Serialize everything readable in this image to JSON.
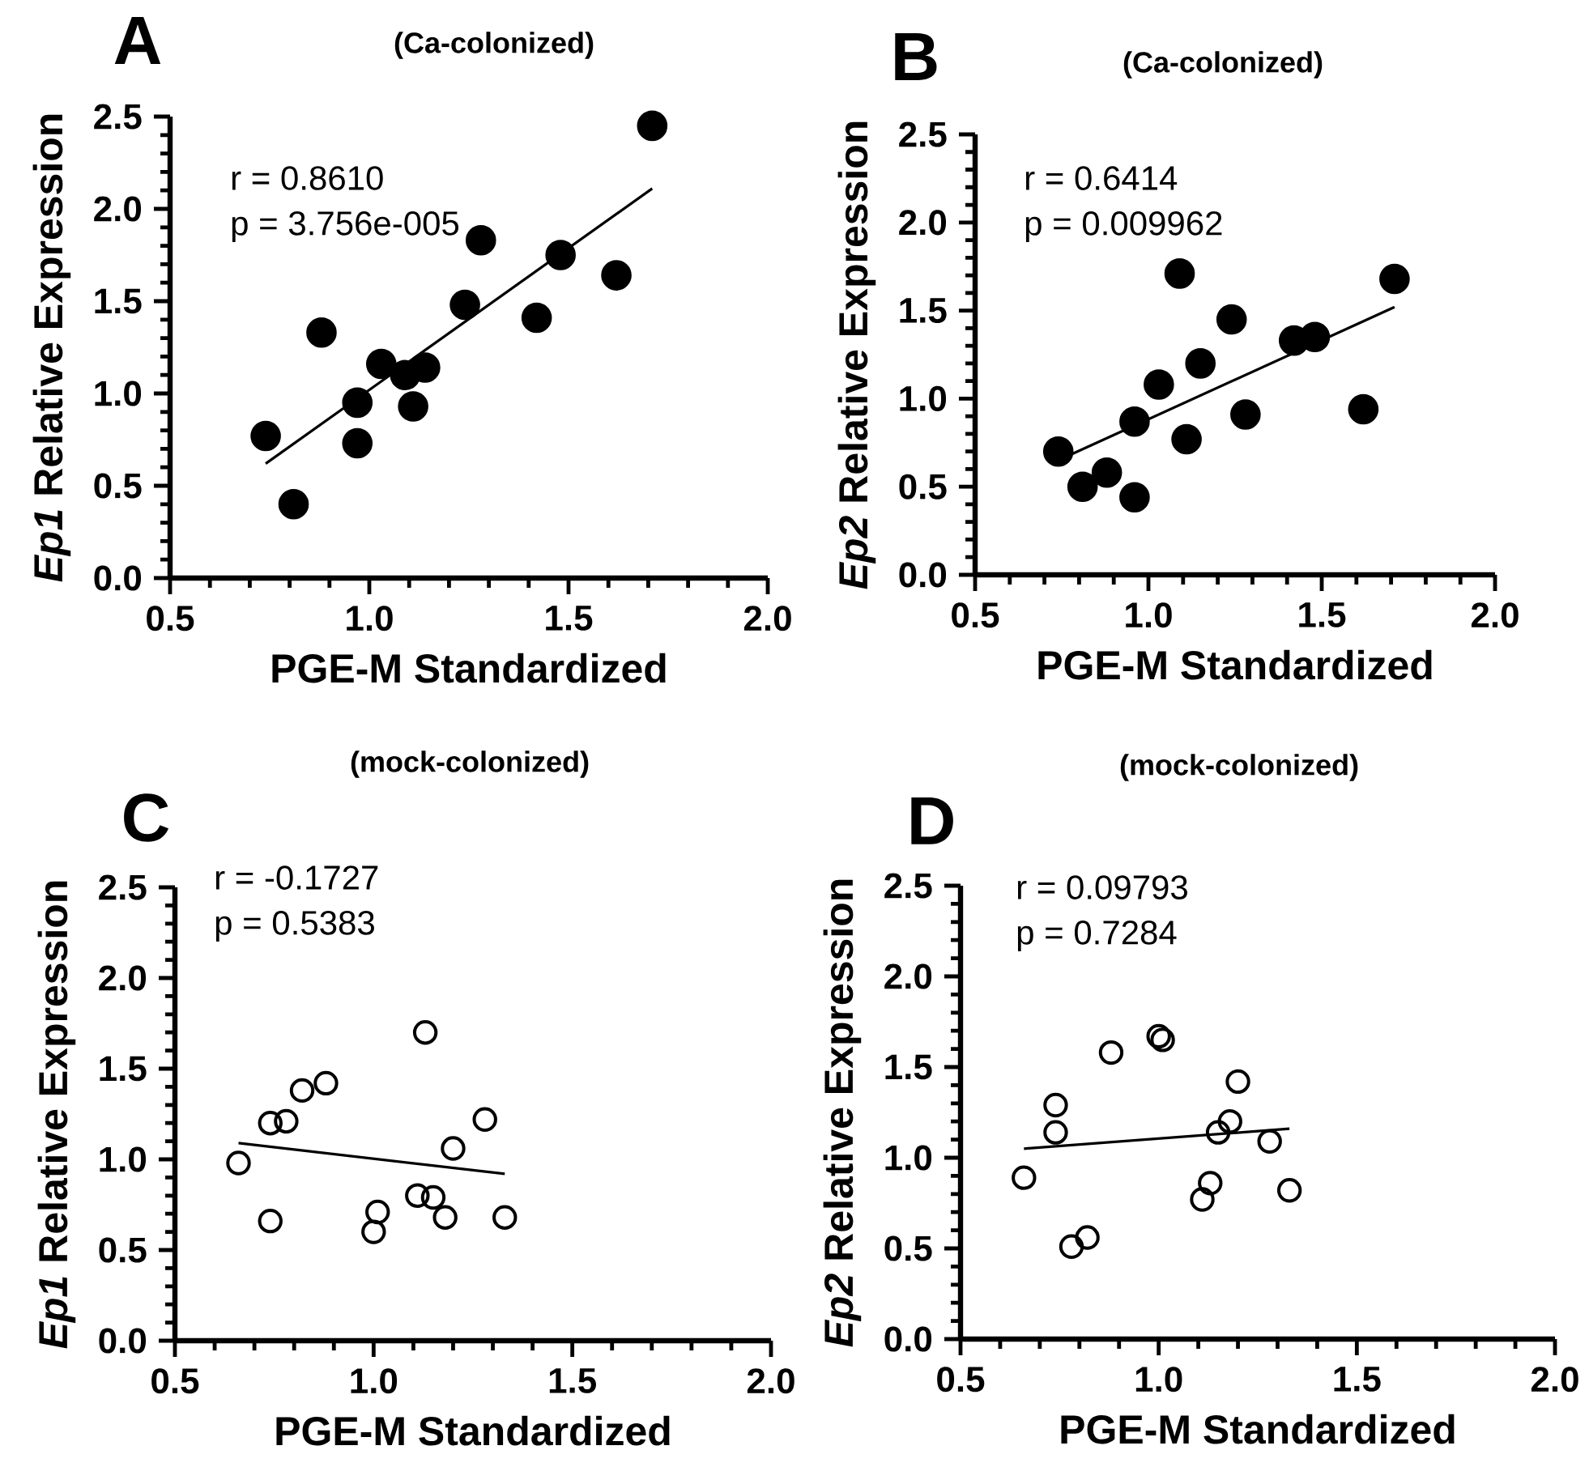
{
  "chart_data": [
    {
      "type": "scatter",
      "title": "(Ca-colonized)",
      "xlabel": "PGE-M Standardized",
      "ylabel": "*Ep1* Relative Expression",
      "annotations": [
        "A",
        "r = 0.8610",
        "p = 3.756e-005"
      ],
      "marker": "circle",
      "grid": false,
      "xlim": [
        0.5,
        2.0
      ],
      "ylim": [
        0,
        2.5
      ],
      "xticks": [
        {
          "value": 0.5,
          "label": "0.5"
        },
        {
          "value": 1,
          "label": "1.0"
        },
        {
          "value": 1.5,
          "label": "1.5"
        },
        {
          "value": 2,
          "label": "2.0"
        }
      ],
      "yticks": [
        {
          "value": 0,
          "label": "0.0"
        },
        {
          "value": 0.5,
          "label": "0.5"
        },
        {
          "value": 1,
          "label": "1.0"
        },
        {
          "value": 1.5,
          "label": "1.5"
        },
        {
          "value": 2,
          "label": "2.0"
        },
        {
          "value": 2.5,
          "label": "2.5"
        }
      ],
      "series": [
        {
          "color": "#000000",
          "x": [
            0.74,
            0.81,
            0.88,
            0.97,
            0.97,
            1.03,
            1.09,
            1.11,
            1.14,
            1.24,
            1.28,
            1.42,
            1.48,
            1.62,
            1.71
          ],
          "values": [
            0.77,
            0.4,
            1.33,
            0.95,
            0.73,
            1.16,
            1.1,
            0.93,
            1.14,
            1.48,
            1.83,
            1.41,
            1.75,
            1.64,
            2.45
          ]
        },
        {
          "type": "line",
          "marker": "none",
          "color": "#000000",
          "x": [
            0.74,
            1.71
          ],
          "values": [
            0.62,
            2.11
          ]
        }
      ]
    },
    {
      "type": "scatter",
      "title": "(Ca-colonized)",
      "xlabel": "PGE-M Standardized",
      "ylabel": "*Ep2* Relative Expression",
      "annotations": [
        "B",
        "r = 0.6414",
        "p = 0.009962"
      ],
      "marker": "circle",
      "grid": false,
      "xlim": [
        0.5,
        2.0
      ],
      "ylim": [
        0,
        2.5
      ],
      "xticks": [
        {
          "value": 0.5,
          "label": "0.5"
        },
        {
          "value": 1,
          "label": "1.0"
        },
        {
          "value": 1.5,
          "label": "1.5"
        },
        {
          "value": 2,
          "label": "2.0"
        }
      ],
      "yticks": [
        {
          "value": 0,
          "label": "0.0"
        },
        {
          "value": 0.5,
          "label": "0.5"
        },
        {
          "value": 1,
          "label": "1.0"
        },
        {
          "value": 1.5,
          "label": "1.5"
        },
        {
          "value": 2,
          "label": "2.0"
        },
        {
          "value": 2.5,
          "label": "2.5"
        }
      ],
      "series": [
        {
          "color": "#000000",
          "x": [
            0.74,
            0.81,
            0.88,
            0.96,
            0.96,
            1.03,
            1.09,
            1.11,
            1.15,
            1.24,
            1.28,
            1.42,
            1.48,
            1.62,
            1.71
          ],
          "values": [
            0.7,
            0.5,
            0.58,
            0.44,
            0.87,
            1.08,
            1.71,
            0.77,
            1.2,
            1.45,
            0.91,
            1.33,
            1.35,
            0.94,
            1.68
          ]
        },
        {
          "type": "line",
          "marker": "none",
          "color": "#000000",
          "x": [
            0.74,
            1.71
          ],
          "values": [
            0.65,
            1.52
          ]
        }
      ]
    },
    {
      "type": "scatter",
      "title": "(mock-colonized)",
      "xlabel": "PGE-M Standardized",
      "ylabel": "*Ep1* Relative Expression",
      "annotations": [
        "C",
        "r = -0.1727",
        "p = 0.5383"
      ],
      "marker": "circle",
      "grid": false,
      "xlim": [
        0.5,
        2.0
      ],
      "ylim": [
        0,
        2.5
      ],
      "xticks": [
        {
          "value": 0.5,
          "label": "0.5"
        },
        {
          "value": 1,
          "label": "1.0"
        },
        {
          "value": 1.5,
          "label": "1.5"
        },
        {
          "value": 2,
          "label": "2.0"
        }
      ],
      "yticks": [
        {
          "value": 0,
          "label": "0.0"
        },
        {
          "value": 0.5,
          "label": "0.5"
        },
        {
          "value": 1,
          "label": "1.0"
        },
        {
          "value": 1.5,
          "label": "1.5"
        },
        {
          "value": 2,
          "label": "2.0"
        },
        {
          "value": 2.5,
          "label": "2.5"
        }
      ],
      "series": [
        {
          "color": "#000000",
          "x": [
            0.66,
            0.74,
            0.74,
            0.78,
            0.82,
            0.88,
            1.0,
            1.01,
            1.11,
            1.13,
            1.15,
            1.18,
            1.2,
            1.28,
            1.33
          ],
          "values": [
            0.98,
            0.66,
            1.2,
            1.21,
            1.38,
            1.42,
            0.6,
            0.71,
            0.8,
            1.7,
            0.79,
            0.68,
            1.06,
            1.22,
            0.68
          ]
        },
        {
          "type": "line",
          "marker": "none",
          "color": "#000000",
          "x": [
            0.66,
            1.33
          ],
          "values": [
            1.09,
            0.92
          ]
        }
      ]
    },
    {
      "type": "scatter",
      "title": "(mock-colonized)",
      "xlabel": "PGE-M Standardized",
      "ylabel": "*Ep2* Relative Expression",
      "annotations": [
        "D",
        "r = 0.09793",
        "p = 0.7284"
      ],
      "marker": "circle",
      "grid": false,
      "xlim": [
        0.5,
        2.0
      ],
      "ylim": [
        0,
        2.5
      ],
      "xticks": [
        {
          "value": 0.5,
          "label": "0.5"
        },
        {
          "value": 1,
          "label": "1.0"
        },
        {
          "value": 1.5,
          "label": "1.5"
        },
        {
          "value": 2,
          "label": "2.0"
        }
      ],
      "yticks": [
        {
          "value": 0,
          "label": "0.0"
        },
        {
          "value": 0.5,
          "label": "0.5"
        },
        {
          "value": 1,
          "label": "1.0"
        },
        {
          "value": 1.5,
          "label": "1.5"
        },
        {
          "value": 2,
          "label": "2.0"
        },
        {
          "value": 2.5,
          "label": "2.5"
        }
      ],
      "series": [
        {
          "color": "#000000",
          "x": [
            0.66,
            0.74,
            0.74,
            0.78,
            0.82,
            0.88,
            1.0,
            1.01,
            1.11,
            1.13,
            1.15,
            1.18,
            1.2,
            1.28,
            1.33
          ],
          "values": [
            0.89,
            1.14,
            1.29,
            0.51,
            0.56,
            1.58,
            1.67,
            1.65,
            0.77,
            0.86,
            1.14,
            1.2,
            1.42,
            1.09,
            0.82
          ]
        },
        {
          "type": "line",
          "marker": "none",
          "color": "#000000",
          "x": [
            0.66,
            1.33
          ],
          "values": [
            1.05,
            1.16
          ]
        }
      ]
    }
  ]
}
